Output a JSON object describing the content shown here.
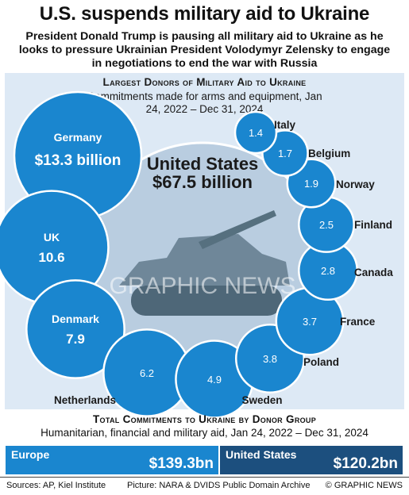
{
  "headline": "U.S. suspends military aid to Ukraine",
  "subhead": "President Donald Trump is pausing all military aid to Ukraine as he looks to pressure Ukrainian President Volodymyr Zelensky to engage in negotiations to end the war with Russia",
  "watermark": "GRAPHIC NEWS",
  "colors": {
    "bubble": "#1a86cf",
    "bubble_border": "#ffffff",
    "panel_bg": "#dde9f5",
    "europe_bar": "#1a86cf",
    "us_bar": "#1c4f7e"
  },
  "chart_data": [
    {
      "type": "bubble",
      "title": "Largest Donors of Military Aid to Ukraine",
      "subtitle": "Commitments made for arms and equipment, Jan 24, 2022 – Dec 31, 2024",
      "unit": "billion",
      "center": {
        "name": "United States",
        "value": 67.5,
        "label": "$67.5 billion"
      },
      "donors": [
        {
          "name": "Germany",
          "value": 13.3,
          "label": "$13.3 billion"
        },
        {
          "name": "UK",
          "value": 10.6,
          "label": "10.6"
        },
        {
          "name": "Denmark",
          "value": 7.9,
          "label": "7.9"
        },
        {
          "name": "Netherlands",
          "value": 6.2,
          "label": "6.2"
        },
        {
          "name": "Sweden",
          "value": 4.9,
          "label": "4.9"
        },
        {
          "name": "Poland",
          "value": 3.8,
          "label": "3.8"
        },
        {
          "name": "France",
          "value": 3.7,
          "label": "3.7"
        },
        {
          "name": "Canada",
          "value": 2.8,
          "label": "2.8"
        },
        {
          "name": "Finland",
          "value": 2.5,
          "label": "2.5"
        },
        {
          "name": "Norway",
          "value": 1.9,
          "label": "1.9"
        },
        {
          "name": "Belgium",
          "value": 1.7,
          "label": "1.7"
        },
        {
          "name": "Italy",
          "value": 1.4,
          "label": "1.4"
        }
      ]
    },
    {
      "type": "bar",
      "title": "Total Commitments to Ukraine by Donor Group",
      "subtitle": "Humanitarian, financial and military aid, Jan 24, 2022 – Dec 31, 2024",
      "categories": [
        "Europe",
        "United States"
      ],
      "values": [
        139.3,
        120.2
      ],
      "value_labels": [
        "$139.3bn",
        "$120.2bn"
      ],
      "unit": "bn"
    }
  ],
  "footer": {
    "sources": "Sources: AP, Kiel Institute",
    "picture": "Picture: NARA & DVIDS Public Domain Archive",
    "copyright": "© GRAPHIC NEWS"
  }
}
